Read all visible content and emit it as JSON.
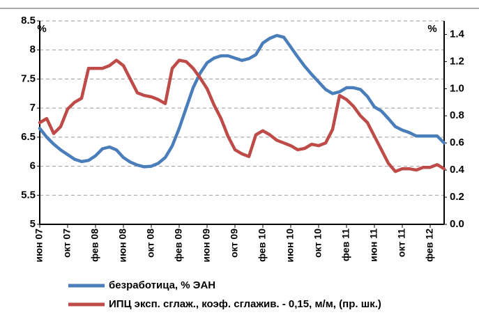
{
  "chart_data": {
    "type": "line",
    "y_label": "%",
    "y2_label": "%",
    "categories": [
      "июн 07",
      null,
      null,
      null,
      "окт 07",
      null,
      null,
      null,
      "фев 08",
      null,
      null,
      null,
      "июн 08",
      null,
      null,
      null,
      "окт 08",
      null,
      null,
      null,
      "фев 09",
      null,
      null,
      null,
      "июн 09",
      null,
      null,
      null,
      "окт 09",
      null,
      null,
      null,
      "фев 10",
      null,
      null,
      null,
      "июн 10",
      null,
      null,
      null,
      "окт 10",
      null,
      null,
      null,
      "фев 11",
      null,
      null,
      null,
      "июн 11",
      null,
      null,
      null,
      "окт 11",
      null,
      null,
      null,
      "фев 12",
      null,
      null
    ],
    "series": [
      {
        "name": "безработица, % ЭАН",
        "color": "#4a7ebb",
        "axis": "y",
        "values": [
          6.65,
          6.5,
          6.38,
          6.28,
          6.2,
          6.12,
          6.08,
          6.1,
          6.18,
          6.3,
          6.33,
          6.28,
          6.15,
          6.07,
          6.02,
          5.99,
          6.0,
          6.05,
          6.15,
          6.35,
          6.65,
          7.0,
          7.35,
          7.6,
          7.78,
          7.86,
          7.9,
          7.9,
          7.86,
          7.82,
          7.85,
          7.92,
          8.12,
          8.2,
          8.25,
          8.22,
          8.05,
          7.88,
          7.72,
          7.58,
          7.45,
          7.32,
          7.25,
          7.28,
          7.35,
          7.35,
          7.32,
          7.2,
          7.02,
          6.95,
          6.82,
          6.68,
          6.62,
          6.58,
          6.52,
          6.52,
          6.52,
          6.52,
          6.4
        ]
      },
      {
        "name": "ИПЦ эксп. сглаж., коэф. сглажив. - 0,15, м/м, (пр. шк.)",
        "color": "#be4b48",
        "axis": "y2",
        "values": [
          0.75,
          0.78,
          0.67,
          0.72,
          0.85,
          0.9,
          0.93,
          1.15,
          1.15,
          1.15,
          1.17,
          1.21,
          1.17,
          1.07,
          0.97,
          0.95,
          0.94,
          0.92,
          0.89,
          1.15,
          1.21,
          1.2,
          1.15,
          1.08,
          1.0,
          0.88,
          0.78,
          0.65,
          0.55,
          0.52,
          0.5,
          0.66,
          0.69,
          0.66,
          0.62,
          0.6,
          0.58,
          0.55,
          0.56,
          0.59,
          0.58,
          0.6,
          0.7,
          0.95,
          0.92,
          0.87,
          0.8,
          0.75,
          0.65,
          0.55,
          0.45,
          0.39,
          0.41,
          0.41,
          0.4,
          0.42,
          0.42,
          0.44,
          0.41
        ]
      }
    ],
    "ylim": [
      5,
      8.5
    ],
    "yticks": [
      5,
      5.5,
      6,
      6.5,
      7,
      7.5,
      8,
      8.5
    ],
    "y2lim": [
      0,
      1.5
    ],
    "y2ticks": [
      {
        "value": 0,
        "label": "0.0"
      },
      0.2,
      0.4,
      0.6,
      0.8,
      {
        "value": 1,
        "label": "1.0"
      },
      1.2,
      1.4
    ],
    "grid": true
  }
}
